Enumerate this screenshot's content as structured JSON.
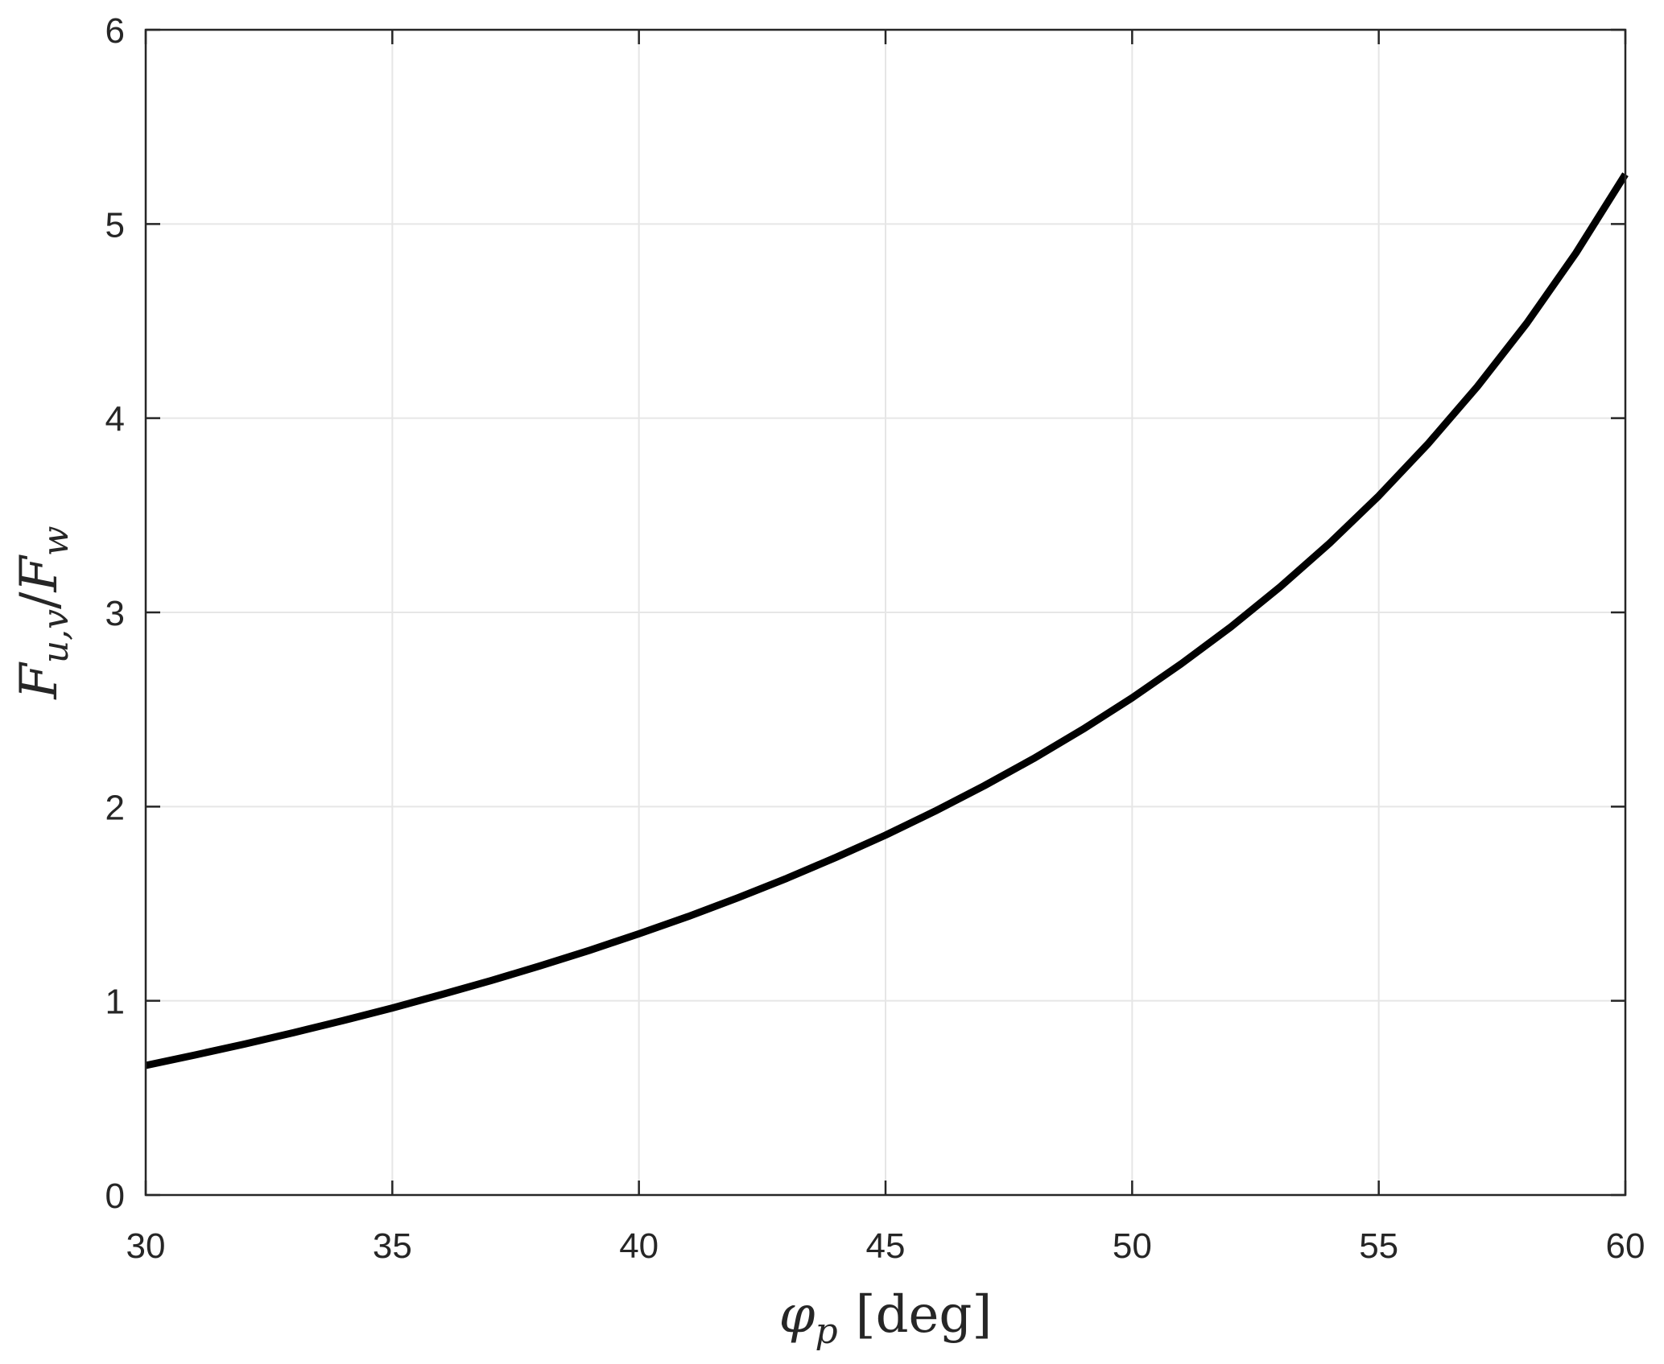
{
  "chart_data": {
    "type": "line",
    "xlabel": {
      "symbol": "φ",
      "subscript": "p",
      "unit": "[deg]"
    },
    "ylabel": {
      "numerator": "F",
      "numerator_subscript": "u,v",
      "separator": "/",
      "denominator": "F",
      "denominator_subscript": "w"
    },
    "xlim": [
      30,
      60
    ],
    "ylim": [
      0,
      6
    ],
    "xticks": [
      "30",
      "35",
      "40",
      "45",
      "50",
      "55",
      "60"
    ],
    "yticks": [
      "0",
      "1",
      "2",
      "3",
      "4",
      "5",
      "6"
    ],
    "grid": true,
    "line_color": "#000000",
    "grid_color": "#e6e6e6",
    "axis_color": "#262626",
    "series": [
      {
        "x": [
          30,
          31,
          32,
          33,
          34,
          35,
          36,
          37,
          38,
          39,
          40,
          41,
          42,
          43,
          44,
          45,
          46,
          47,
          48,
          49,
          50,
          51,
          52,
          53,
          54,
          55,
          56,
          57,
          58,
          59,
          60
        ],
        "y": [
          0.667,
          0.721,
          0.777,
          0.836,
          0.898,
          0.963,
          1.032,
          1.104,
          1.18,
          1.26,
          1.345,
          1.434,
          1.53,
          1.631,
          1.739,
          1.853,
          1.976,
          2.107,
          2.247,
          2.398,
          2.56,
          2.736,
          2.925,
          3.131,
          3.355,
          3.6,
          3.868,
          4.163,
          4.489,
          4.851,
          5.256
        ]
      }
    ]
  }
}
